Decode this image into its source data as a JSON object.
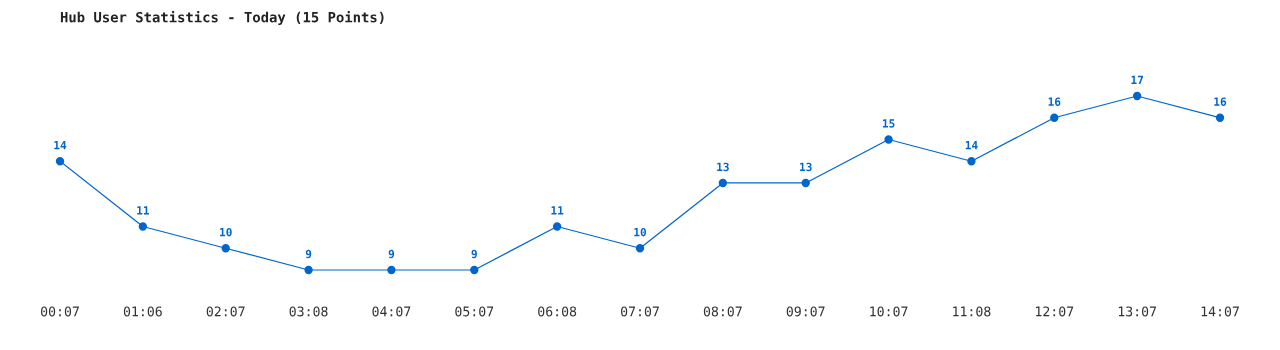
{
  "chart_data": {
    "type": "line",
    "title": "Hub User Statistics - Today (15 Points)",
    "categories": [
      "00:07",
      "01:06",
      "02:07",
      "03:08",
      "04:07",
      "05:07",
      "06:08",
      "07:07",
      "08:07",
      "09:07",
      "10:07",
      "11:08",
      "12:07",
      "13:07",
      "14:07"
    ],
    "series": [
      {
        "color": "#0066cc",
        "values": [
          14,
          11,
          10,
          9,
          9,
          9,
          11,
          10,
          13,
          13,
          15,
          14,
          16,
          17,
          16
        ]
      }
    ],
    "data_labels": true,
    "marker": "circle",
    "line_style": "solid",
    "grid": false,
    "legend": false
  }
}
